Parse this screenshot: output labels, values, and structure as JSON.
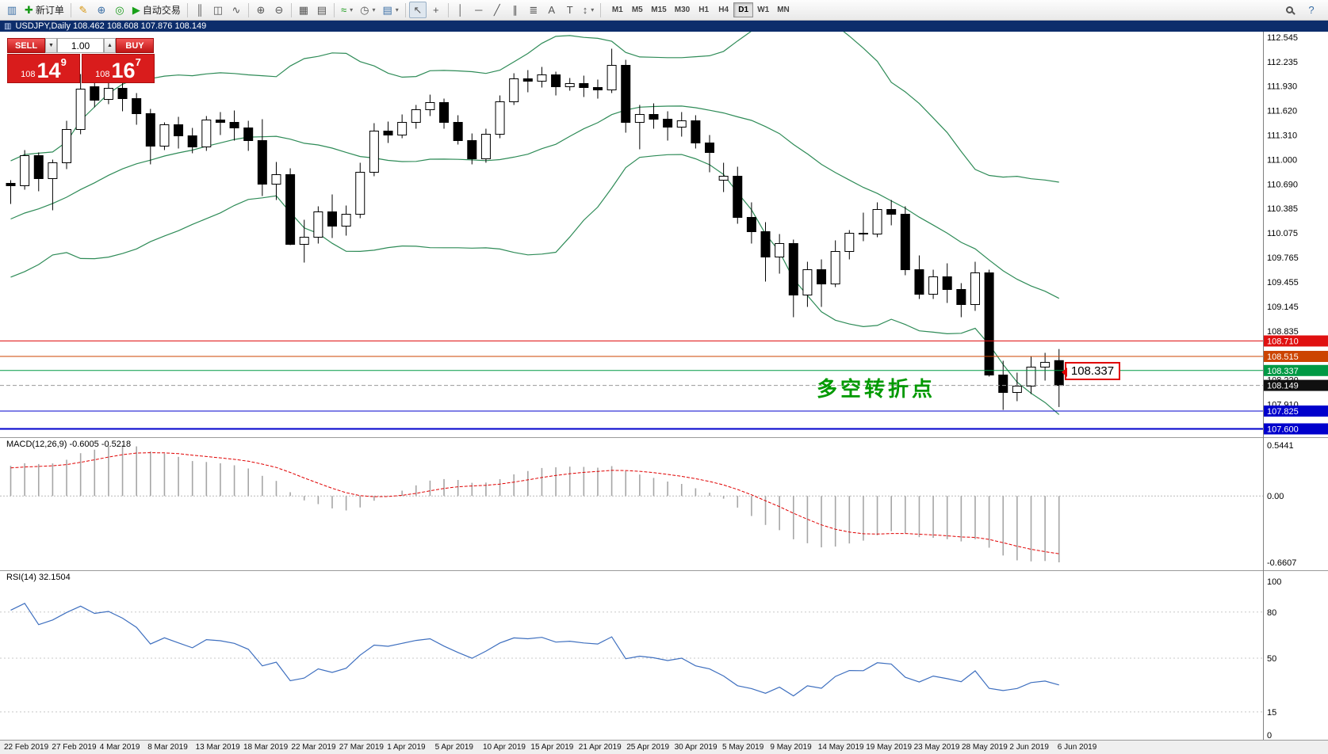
{
  "toolbar": {
    "items": [
      {
        "name": "new-chart-icon",
        "glyph": "▥",
        "color": "#3a6ea5"
      },
      {
        "name": "new-order-button",
        "glyph": "✚",
        "color": "#189a18",
        "label": "新订单"
      },
      {
        "sep": true
      },
      {
        "name": "metaeditor-icon",
        "glyph": "✎",
        "color": "#d6930a"
      },
      {
        "name": "market-watch-icon",
        "glyph": "⊕",
        "color": "#3a6ea5"
      },
      {
        "name": "navigator-icon",
        "glyph": "◎",
        "color": "#189a18"
      },
      {
        "name": "autotrading-button",
        "glyph": "▶",
        "color": "#18a018",
        "label": "自动交易"
      },
      {
        "sep": true
      },
      {
        "name": "bar-chart-button",
        "glyph": "║"
      },
      {
        "name": "candlestick-chart-button",
        "glyph": "◫"
      },
      {
        "name": "line-chart-button",
        "glyph": "∿"
      },
      {
        "sep": true
      },
      {
        "name": "zoom-in-button",
        "glyph": "⊕"
      },
      {
        "name": "zoom-out-button",
        "glyph": "⊖"
      },
      {
        "sep": true
      },
      {
        "name": "tile-windows-button",
        "glyph": "▦"
      },
      {
        "name": "arrange-windows-button",
        "glyph": "▤"
      },
      {
        "sep": true
      },
      {
        "name": "indicators-button",
        "glyph": "≈",
        "color": "#189a18",
        "caret": true
      },
      {
        "name": "periods-button",
        "glyph": "◷",
        "caret": true
      },
      {
        "name": "templates-button",
        "glyph": "▤",
        "color": "#3a6ea5",
        "caret": true
      },
      {
        "sep": true
      },
      {
        "name": "cursor-button",
        "glyph": "↖",
        "active": true
      },
      {
        "name": "crosshair-button",
        "glyph": "+"
      },
      {
        "sep": true
      },
      {
        "name": "vertical-line-button",
        "glyph": "│"
      },
      {
        "name": "horizontal-line-button",
        "glyph": "─"
      },
      {
        "name": "trendline-button",
        "glyph": "╱"
      },
      {
        "name": "equidistant-channel-button",
        "glyph": "∥"
      },
      {
        "name": "fibonacci-button",
        "glyph": "≣"
      },
      {
        "name": "text-button",
        "glyph": "A"
      },
      {
        "name": "text-label-button",
        "glyph": "T"
      },
      {
        "name": "arrows-button",
        "glyph": "↕",
        "caret": true
      },
      {
        "sep": true
      }
    ],
    "timeframes": [
      "M1",
      "M5",
      "M15",
      "M30",
      "H1",
      "H4",
      "D1",
      "W1",
      "MN"
    ],
    "active_timeframe": "D1",
    "right_items": [
      {
        "name": "search-button",
        "shape": "magnifier"
      },
      {
        "name": "help-button",
        "glyph": "?",
        "color": "#3a6ea5"
      }
    ]
  },
  "chart_header": {
    "icon": "▥",
    "title": "USDJPY,Daily  108.462 108.608 107.876 108.149"
  },
  "one_click": {
    "sell_label": "SELL",
    "buy_label": "BUY",
    "volume": "1.00",
    "sell_price": {
      "big_figure": "108",
      "pips": "14",
      "pipette": "9"
    },
    "buy_price": {
      "big_figure": "108",
      "pips": "16",
      "pipette": "7"
    }
  },
  "icons": {
    "caret_down": "▼",
    "caret_up": "▲"
  },
  "price_scale": {
    "ticks": [
      "112.545",
      "112.235",
      "111.930",
      "111.620",
      "111.310",
      "111.000",
      "110.690",
      "110.385",
      "110.075",
      "109.765",
      "109.455",
      "109.145",
      "108.835",
      "108.220",
      "107.910"
    ],
    "tags": [
      {
        "value": "108.710",
        "price": 108.71,
        "bg": "#e01010"
      },
      {
        "value": "108.515",
        "price": 108.515,
        "bg": "#cc4400"
      },
      {
        "value": "108.337",
        "price": 108.337,
        "bg": "#009944"
      },
      {
        "value": "108.149",
        "price": 108.149,
        "bg": "#101010"
      },
      {
        "value": "107.825",
        "price": 107.825,
        "bg": "#0000cc"
      },
      {
        "value": "107.600",
        "price": 107.6,
        "bg": "#0000cc"
      }
    ]
  },
  "levels": [
    {
      "price": 108.71,
      "color": "#e01010",
      "width": 1
    },
    {
      "price": 108.515,
      "color": "#cc4400",
      "width": 1
    },
    {
      "price": 108.337,
      "color": "#009944",
      "width": 1
    },
    {
      "price": 108.149,
      "color": "#999999",
      "width": 1,
      "dashed": true
    },
    {
      "price": 107.825,
      "color": "#0000cc",
      "width": 1
    },
    {
      "price": 107.6,
      "color": "#0000cc",
      "width": 2
    }
  ],
  "price_label_box": {
    "text": "108.337",
    "border": "#e00000"
  },
  "annotation": {
    "text": "多空转折点",
    "color": "#009900"
  },
  "chart_data": {
    "type": "candlestick",
    "symbol": "USDJPY",
    "timeframe": "Daily",
    "last_ohlc": {
      "open": 108.462,
      "high": 108.608,
      "low": 107.876,
      "close": 108.149
    },
    "indicators": [
      "Bollinger Bands (20,2)",
      "MACD(12,26,9)",
      "RSI(14)"
    ],
    "bollinger": {
      "period": 20,
      "deviation": 2,
      "color": "#2e8b57"
    },
    "warmup_closes": [
      109.4,
      109.55,
      109.7,
      109.6,
      109.8,
      109.95,
      110.05,
      110.0,
      110.15,
      110.3,
      110.25,
      110.4,
      110.5,
      110.45,
      110.55,
      110.6,
      110.55,
      110.65,
      110.6,
      110.68
    ],
    "candles": [
      [
        110.7,
        110.74,
        110.44,
        110.67
      ],
      [
        110.67,
        111.12,
        110.62,
        111.05
      ],
      [
        111.05,
        111.09,
        110.6,
        110.76
      ],
      [
        110.76,
        111.0,
        110.36,
        110.96
      ],
      [
        110.96,
        111.49,
        110.88,
        111.38
      ],
      [
        111.38,
        112.08,
        111.32,
        111.89
      ],
      [
        111.92,
        112.14,
        111.66,
        111.75
      ],
      [
        111.76,
        112.0,
        111.7,
        111.9
      ],
      [
        111.9,
        111.97,
        111.61,
        111.77
      ],
      [
        111.77,
        111.84,
        111.44,
        111.58
      ],
      [
        111.58,
        111.64,
        110.94,
        111.17
      ],
      [
        111.17,
        111.47,
        111.12,
        111.44
      ],
      [
        111.44,
        111.54,
        111.14,
        111.3
      ],
      [
        111.3,
        111.4,
        111.08,
        111.16
      ],
      [
        111.16,
        111.55,
        111.11,
        111.5
      ],
      [
        111.5,
        111.6,
        111.31,
        111.47
      ],
      [
        111.47,
        111.62,
        111.24,
        111.4
      ],
      [
        111.4,
        111.49,
        111.11,
        111.24
      ],
      [
        111.24,
        111.51,
        110.54,
        110.69
      ],
      [
        110.69,
        110.97,
        110.49,
        110.81
      ],
      [
        110.81,
        110.89,
        109.92,
        109.93
      ],
      [
        109.93,
        110.24,
        109.7,
        110.02
      ],
      [
        110.02,
        110.41,
        109.94,
        110.34
      ],
      [
        110.34,
        110.56,
        110.01,
        110.16
      ],
      [
        110.16,
        110.42,
        110.04,
        110.31
      ],
      [
        110.31,
        110.96,
        110.26,
        110.84
      ],
      [
        110.84,
        111.46,
        110.79,
        111.36
      ],
      [
        111.36,
        111.48,
        111.21,
        111.31
      ],
      [
        111.31,
        111.57,
        111.27,
        111.47
      ],
      [
        111.47,
        111.69,
        111.39,
        111.63
      ],
      [
        111.63,
        111.82,
        111.55,
        111.72
      ],
      [
        111.72,
        111.77,
        111.39,
        111.47
      ],
      [
        111.47,
        111.56,
        111.19,
        111.24
      ],
      [
        111.24,
        111.33,
        110.94,
        111.01
      ],
      [
        111.01,
        111.39,
        110.96,
        111.32
      ],
      [
        111.32,
        111.81,
        111.27,
        111.73
      ],
      [
        111.73,
        112.09,
        111.69,
        112.02
      ],
      [
        112.02,
        112.13,
        111.85,
        111.99
      ],
      [
        111.99,
        112.17,
        111.91,
        112.07
      ],
      [
        112.07,
        112.11,
        111.81,
        111.92
      ],
      [
        111.92,
        112.03,
        111.87,
        111.96
      ],
      [
        111.96,
        112.06,
        111.79,
        111.91
      ],
      [
        111.91,
        112.01,
        111.77,
        111.88
      ],
      [
        111.88,
        112.4,
        111.84,
        112.19
      ],
      [
        112.19,
        112.26,
        111.34,
        111.47
      ],
      [
        111.47,
        111.69,
        111.13,
        111.57
      ],
      [
        111.57,
        111.71,
        111.39,
        111.51
      ],
      [
        111.51,
        111.61,
        111.24,
        111.41
      ],
      [
        111.41,
        111.6,
        111.29,
        111.49
      ],
      [
        111.49,
        111.56,
        111.14,
        111.21
      ],
      [
        111.21,
        111.31,
        110.84,
        111.09
      ],
      [
        110.74,
        110.96,
        110.59,
        110.79
      ],
      [
        110.79,
        110.91,
        110.19,
        110.27
      ],
      [
        110.27,
        110.46,
        109.94,
        110.09
      ],
      [
        110.09,
        110.21,
        109.46,
        109.77
      ],
      [
        109.77,
        110.06,
        109.56,
        109.94
      ],
      [
        109.94,
        109.99,
        109.01,
        109.29
      ],
      [
        109.29,
        109.71,
        109.14,
        109.61
      ],
      [
        109.61,
        109.74,
        109.14,
        109.43
      ],
      [
        109.43,
        109.98,
        109.39,
        109.84
      ],
      [
        109.84,
        110.11,
        109.74,
        110.07
      ],
      [
        110.07,
        110.33,
        109.97,
        110.06
      ],
      [
        110.06,
        110.46,
        110.02,
        110.37
      ],
      [
        110.37,
        110.49,
        110.17,
        110.31
      ],
      [
        110.31,
        110.41,
        109.54,
        109.61
      ],
      [
        109.61,
        109.79,
        109.24,
        109.3
      ],
      [
        109.3,
        109.61,
        109.24,
        109.52
      ],
      [
        109.52,
        109.69,
        109.19,
        109.36
      ],
      [
        109.36,
        109.44,
        109.01,
        109.17
      ],
      [
        109.17,
        109.71,
        109.09,
        109.57
      ],
      [
        109.57,
        109.61,
        108.26,
        108.28
      ],
      [
        108.28,
        108.46,
        107.84,
        108.06
      ],
      [
        108.06,
        108.31,
        107.95,
        108.14
      ],
      [
        108.14,
        108.51,
        108.04,
        108.38
      ],
      [
        108.38,
        108.56,
        108.21,
        108.44
      ],
      [
        108.462,
        108.608,
        107.876,
        108.149
      ]
    ]
  },
  "macd": {
    "label": "MACD(12,26,9) -0.6005 -0.5218",
    "fast": 12,
    "slow": 26,
    "signal_period": 9,
    "value": -0.6005,
    "signal_value": -0.5218,
    "scale": [
      "0.5441",
      "0.00",
      "-0.6607"
    ]
  },
  "rsi": {
    "label": "RSI(14) 32.1504",
    "period": 14,
    "value": 32.1504,
    "levels": [
      80,
      50,
      15
    ],
    "scale": [
      "100",
      "80",
      "50",
      "15",
      "0"
    ]
  },
  "time_axis": {
    "labels": [
      "22 Feb 2019",
      "27 Feb 2019",
      "4 Mar 2019",
      "8 Mar 2019",
      "13 Mar 2019",
      "18 Mar 2019",
      "22 Mar 2019",
      "27 Mar 2019",
      "1 Apr 2019",
      "5 Apr 2019",
      "10 Apr 2019",
      "15 Apr 2019",
      "21 Apr 2019",
      "25 Apr 2019",
      "30 Apr 2019",
      "5 May 2019",
      "9 May 2019",
      "14 May 2019",
      "19 May 2019",
      "23 May 2019",
      "28 May 2019",
      "2 Jun 2019",
      "6 Jun 2019"
    ]
  }
}
